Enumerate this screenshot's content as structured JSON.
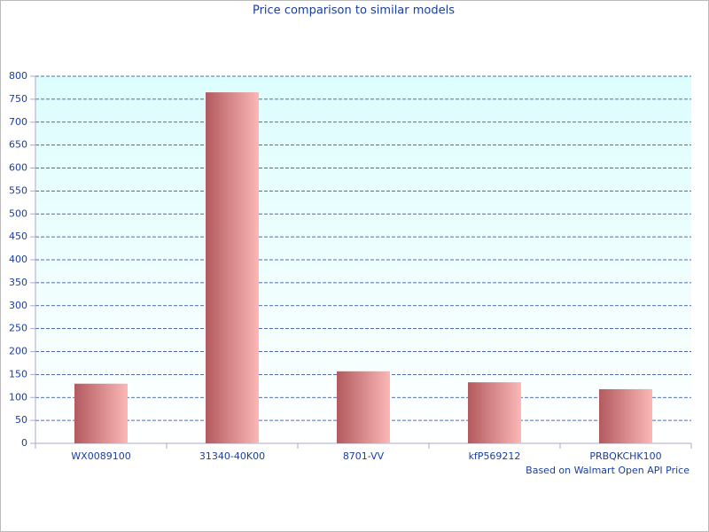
{
  "chart_data": {
    "type": "bar",
    "title": "Price comparison to similar models",
    "categories": [
      "WX0089100",
      "31340-40K00",
      "8701-VV",
      "kfP569212",
      "PRBQKCHK100"
    ],
    "values": [
      130,
      765,
      157,
      133,
      118
    ],
    "note": "Based on Walmart Open API Price",
    "ylim": [
      0,
      800
    ],
    "yticks": [
      0,
      50,
      100,
      150,
      200,
      250,
      300,
      350,
      400,
      450,
      500,
      550,
      600,
      650,
      700,
      750,
      800
    ],
    "grid": true
  }
}
